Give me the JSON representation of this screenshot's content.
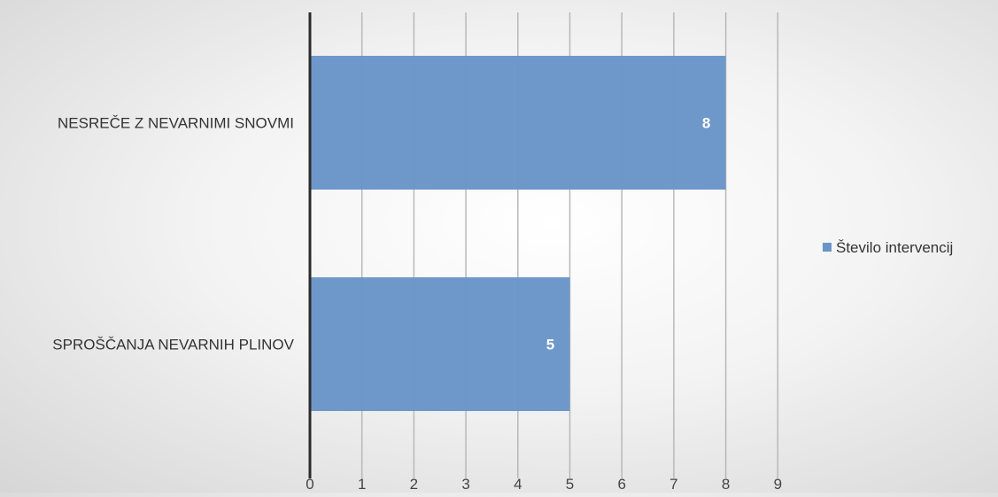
{
  "chart_data": {
    "type": "bar",
    "orientation": "horizontal",
    "categories": [
      "NESREČE Z NEVARNIMI SNOVMI",
      "SPROŠČANJA NEVARNIH PLINOV"
    ],
    "series": [
      {
        "name": "Število intervencij",
        "values": [
          8,
          5
        ],
        "color": "#6a95c8"
      }
    ],
    "data_labels": [
      "8",
      "5"
    ],
    "xlim": [
      0,
      9
    ],
    "x_ticks": [
      "0",
      "1",
      "2",
      "3",
      "4",
      "5",
      "6",
      "7",
      "8",
      "9"
    ],
    "grid": "vertical",
    "legend": "right",
    "title": "",
    "xlabel": "",
    "ylabel": ""
  }
}
